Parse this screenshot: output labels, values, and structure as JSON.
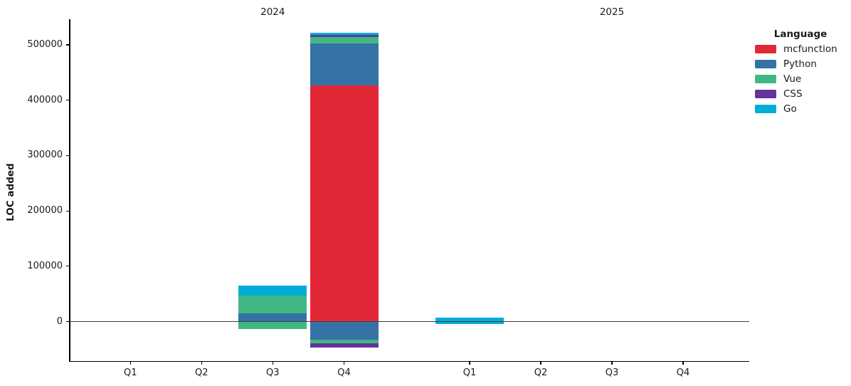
{
  "figure": {
    "ylabel": "LOC added",
    "background": "#ffffff"
  },
  "legend": {
    "title": "Language",
    "entries": [
      {
        "label": "mcfunction",
        "color": "#E22837"
      },
      {
        "label": "Python",
        "color": "#3572A5"
      },
      {
        "label": "Vue",
        "color": "#41B883"
      },
      {
        "label": "CSS",
        "color": "#663399"
      },
      {
        "label": "Go",
        "color": "#00ADD8"
      }
    ]
  },
  "chart_data": {
    "type": "bar",
    "stacked": true,
    "title": "",
    "xlabel": "",
    "ylabel": "LOC added",
    "ylim": [
      -71500,
      547000
    ],
    "grid": false,
    "legend_position": "right-outside",
    "zero_line": true,
    "group_labels": [
      "2024",
      "2025"
    ],
    "groups": [
      {
        "year": "2024",
        "quarters": [
          "Q1",
          "Q2",
          "Q3",
          "Q4"
        ]
      },
      {
        "year": "2025",
        "quarters": [
          "Q1",
          "Q2",
          "Q3",
          "Q4"
        ]
      }
    ],
    "y_ticks": [
      {
        "value": 0,
        "label": "0"
      },
      {
        "value": 100000,
        "label": "100000"
      },
      {
        "value": 200000,
        "label": "200000"
      },
      {
        "value": 300000,
        "label": "300000"
      },
      {
        "value": 400000,
        "label": "400000"
      },
      {
        "value": 500000,
        "label": "500000"
      }
    ],
    "colors": {
      "mcfunction": "#E22837",
      "Python": "#3572A5",
      "Vue": "#41B883",
      "CSS": "#663399",
      "Go": "#00ADD8"
    },
    "bars": [
      {
        "year": "2024",
        "quarter": "Q3",
        "segments": [
          {
            "language": "Python",
            "value": 15000
          },
          {
            "language": "Vue",
            "value": 31500
          },
          {
            "language": "Go",
            "value": 18500
          },
          {
            "language": "Vue",
            "value": -14000
          }
        ]
      },
      {
        "year": "2024",
        "quarter": "Q4",
        "segments": [
          {
            "language": "mcfunction",
            "value": 427000
          },
          {
            "language": "Python",
            "value": 75000
          },
          {
            "language": "Vue",
            "value": 12000
          },
          {
            "language": "CSS",
            "value": 4000
          },
          {
            "language": "Go",
            "value": 4000
          },
          {
            "language": "Python",
            "value": -33000
          },
          {
            "language": "Vue",
            "value": -6500
          },
          {
            "language": "CSS",
            "value": -8000
          }
        ]
      },
      {
        "year": "2025",
        "quarter": "Q1",
        "segments": [
          {
            "language": "Go",
            "value": 7500
          },
          {
            "language": "Go",
            "value": -5000
          }
        ]
      }
    ]
  }
}
